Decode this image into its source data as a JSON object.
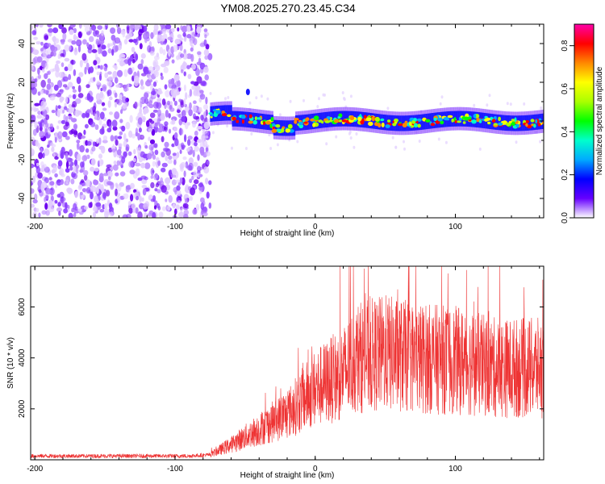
{
  "title": "YM08.2025.270.23.45.C34",
  "chart_data": [
    {
      "type": "heatmap",
      "name": "spectrogram",
      "xlabel": "Height of straight line (km)",
      "ylabel": "Frequency (Hz)",
      "xlim": [
        -203,
        163
      ],
      "ylim": [
        -50,
        50
      ],
      "xticks": [
        -200,
        -100,
        0,
        100
      ],
      "xtick_labels": [
        "-200",
        "-100",
        "0",
        "100"
      ],
      "yticks": [
        -40,
        -20,
        0,
        20,
        40
      ],
      "ytick_labels": [
        "-40",
        "-20",
        "0",
        "20",
        "40"
      ],
      "noise_region_x": [
        -203,
        -75
      ],
      "signal_band_center_hz": 0,
      "signal_band_halfwidth_hz": 4,
      "signal_start_x": -75,
      "colorbar": {
        "label": "Normalized spectral amplitude",
        "range": [
          0,
          0.9
        ],
        "ticks": [
          0.0,
          0.2,
          0.4,
          0.6,
          0.8
        ],
        "tick_labels": [
          "0.0",
          "0.2",
          "0.4",
          "0.6",
          "0.8"
        ],
        "colormap": [
          "#ffffff",
          "#6600ff",
          "#0000ff",
          "#00aaff",
          "#00ffcc",
          "#00ff00",
          "#aaff00",
          "#ffff00",
          "#ff8800",
          "#ff0000",
          "#ff00aa"
        ]
      }
    },
    {
      "type": "line",
      "name": "snr",
      "xlabel": "Height of straight line (km)",
      "ylabel": "SNR (10 * v/v)",
      "xlim": [
        -203,
        163
      ],
      "ylim": [
        0,
        7600
      ],
      "xticks": [
        -200,
        -100,
        0,
        100
      ],
      "xtick_labels": [
        "-200",
        "-100",
        "0",
        "100"
      ],
      "yticks": [
        2000,
        4000,
        6000
      ],
      "ytick_labels": [
        "2000",
        "4000",
        "6000"
      ],
      "line_color": "#ee3333",
      "trend": {
        "x": [
          -203,
          -90,
          -75,
          -60,
          -40,
          -20,
          0,
          20,
          30,
          50,
          70,
          100,
          130,
          163
        ],
        "y": [
          150,
          150,
          200,
          600,
          1200,
          1800,
          2800,
          3400,
          4000,
          4200,
          4000,
          3900,
          3600,
          3600
        ]
      }
    }
  ]
}
